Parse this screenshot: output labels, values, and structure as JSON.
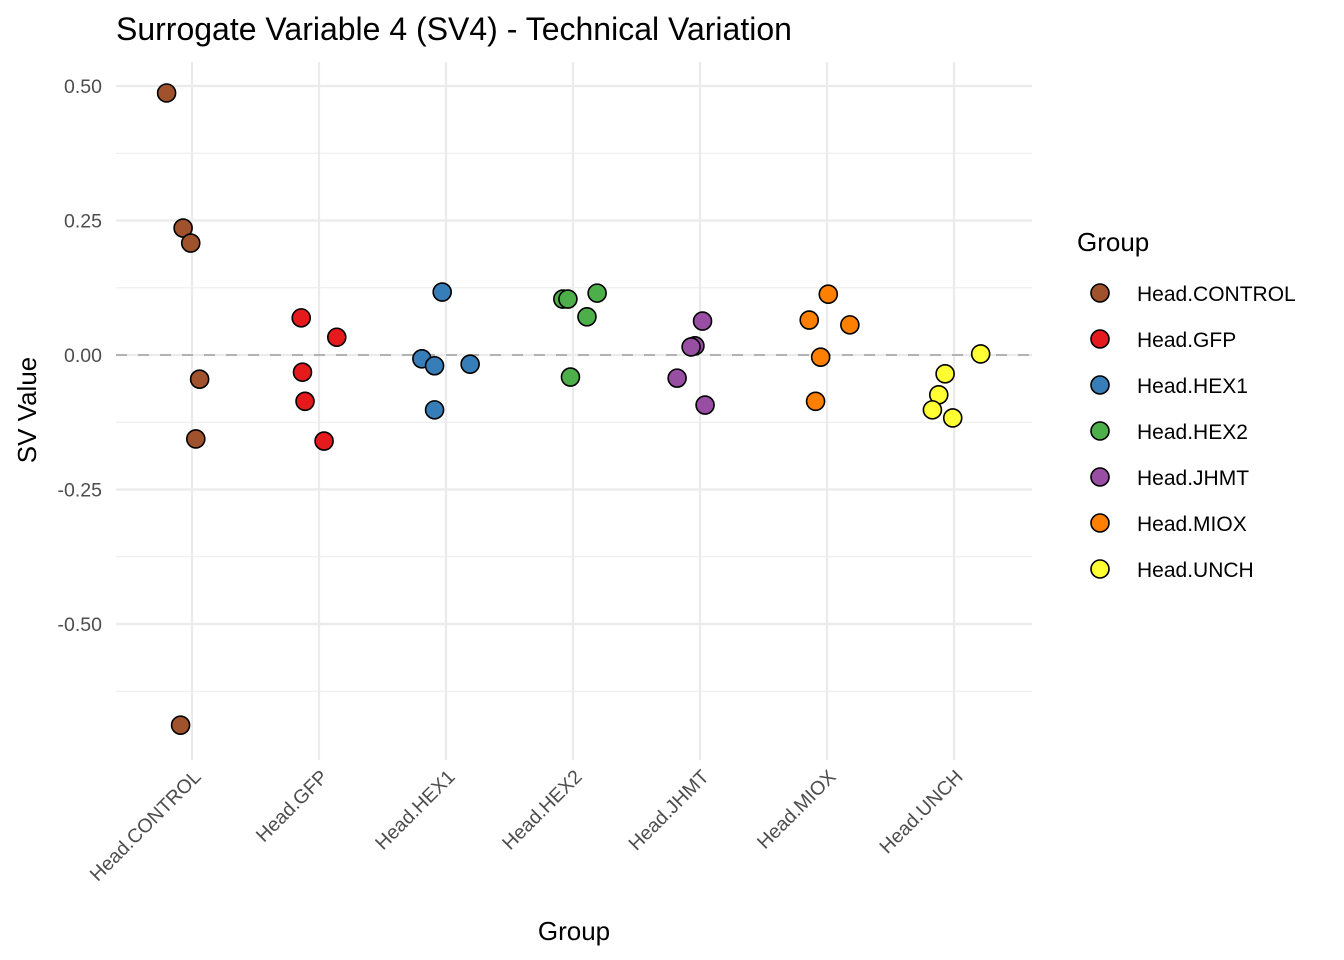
{
  "chart_data": {
    "type": "scatter",
    "title": "Surrogate Variable 4 (SV4) - Technical Variation",
    "xlabel": "Group",
    "ylabel": "SV Value",
    "categories": [
      "Head.CONTROL",
      "Head.GFP",
      "Head.HEX1",
      "Head.HEX2",
      "Head.JHMT",
      "Head.MIOX",
      "Head.UNCH"
    ],
    "ylim": [
      -0.73,
      0.54
    ],
    "yticks": [
      0.5,
      0.25,
      0.0,
      -0.25,
      -0.5
    ],
    "ytick_labels": [
      "0.50",
      "0.25",
      "0.00",
      "-0.25",
      "-0.50"
    ],
    "grid": true,
    "reference_line": {
      "y": 0,
      "style": "dashed",
      "color": "#b3b3b3"
    },
    "legend": {
      "title": "Group",
      "position": "right",
      "entries": [
        {
          "label": "Head.CONTROL",
          "color": "#A0522D"
        },
        {
          "label": "Head.GFP",
          "color": "#E41A1C"
        },
        {
          "label": "Head.HEX1",
          "color": "#377EB8"
        },
        {
          "label": "Head.HEX2",
          "color": "#4DAF4A"
        },
        {
          "label": "Head.JHMT",
          "color": "#984EA3"
        },
        {
          "label": "Head.MIOX",
          "color": "#FF7F00"
        },
        {
          "label": "Head.UNCH",
          "color": "#FFFF33"
        }
      ]
    },
    "series": [
      {
        "name": "Head.CONTROL",
        "color": "#A0522D",
        "points": [
          {
            "y": 0.487,
            "jitter": -0.2
          },
          {
            "y": 0.236,
            "jitter": -0.07
          },
          {
            "y": 0.208,
            "jitter": -0.01
          },
          {
            "y": -0.045,
            "jitter": 0.06
          },
          {
            "y": -0.156,
            "jitter": 0.03
          },
          {
            "y": -0.688,
            "jitter": -0.09
          }
        ]
      },
      {
        "name": "Head.GFP",
        "color": "#E41A1C",
        "points": [
          {
            "y": 0.069,
            "jitter": -0.14
          },
          {
            "y": 0.033,
            "jitter": 0.14
          },
          {
            "y": -0.032,
            "jitter": -0.13
          },
          {
            "y": -0.086,
            "jitter": -0.11
          },
          {
            "y": -0.16,
            "jitter": 0.04
          }
        ]
      },
      {
        "name": "Head.HEX1",
        "color": "#377EB8",
        "points": [
          {
            "y": 0.117,
            "jitter": -0.03
          },
          {
            "y": -0.007,
            "jitter": -0.19
          },
          {
            "y": -0.02,
            "jitter": -0.09
          },
          {
            "y": -0.017,
            "jitter": 0.19
          },
          {
            "y": -0.102,
            "jitter": -0.09
          }
        ]
      },
      {
        "name": "Head.HEX2",
        "color": "#4DAF4A",
        "points": [
          {
            "y": 0.104,
            "jitter": -0.08
          },
          {
            "y": 0.104,
            "jitter": -0.04
          },
          {
            "y": 0.115,
            "jitter": 0.19
          },
          {
            "y": 0.071,
            "jitter": 0.11
          },
          {
            "y": -0.041,
            "jitter": -0.02
          }
        ]
      },
      {
        "name": "Head.JHMT",
        "color": "#984EA3",
        "points": [
          {
            "y": 0.063,
            "jitter": 0.02
          },
          {
            "y": 0.017,
            "jitter": -0.04
          },
          {
            "y": 0.015,
            "jitter": -0.07
          },
          {
            "y": -0.043,
            "jitter": -0.18
          },
          {
            "y": -0.093,
            "jitter": 0.04
          }
        ]
      },
      {
        "name": "Head.MIOX",
        "color": "#FF7F00",
        "points": [
          {
            "y": 0.113,
            "jitter": 0.01
          },
          {
            "y": 0.065,
            "jitter": -0.14
          },
          {
            "y": 0.056,
            "jitter": 0.18
          },
          {
            "y": -0.004,
            "jitter": -0.05
          },
          {
            "y": -0.086,
            "jitter": -0.09
          }
        ]
      },
      {
        "name": "Head.UNCH",
        "color": "#FFFF33",
        "points": [
          {
            "y": 0.002,
            "jitter": 0.21
          },
          {
            "y": -0.035,
            "jitter": -0.07
          },
          {
            "y": -0.074,
            "jitter": -0.12
          },
          {
            "y": -0.102,
            "jitter": -0.17
          },
          {
            "y": -0.117,
            "jitter": -0.01
          }
        ]
      }
    ]
  }
}
